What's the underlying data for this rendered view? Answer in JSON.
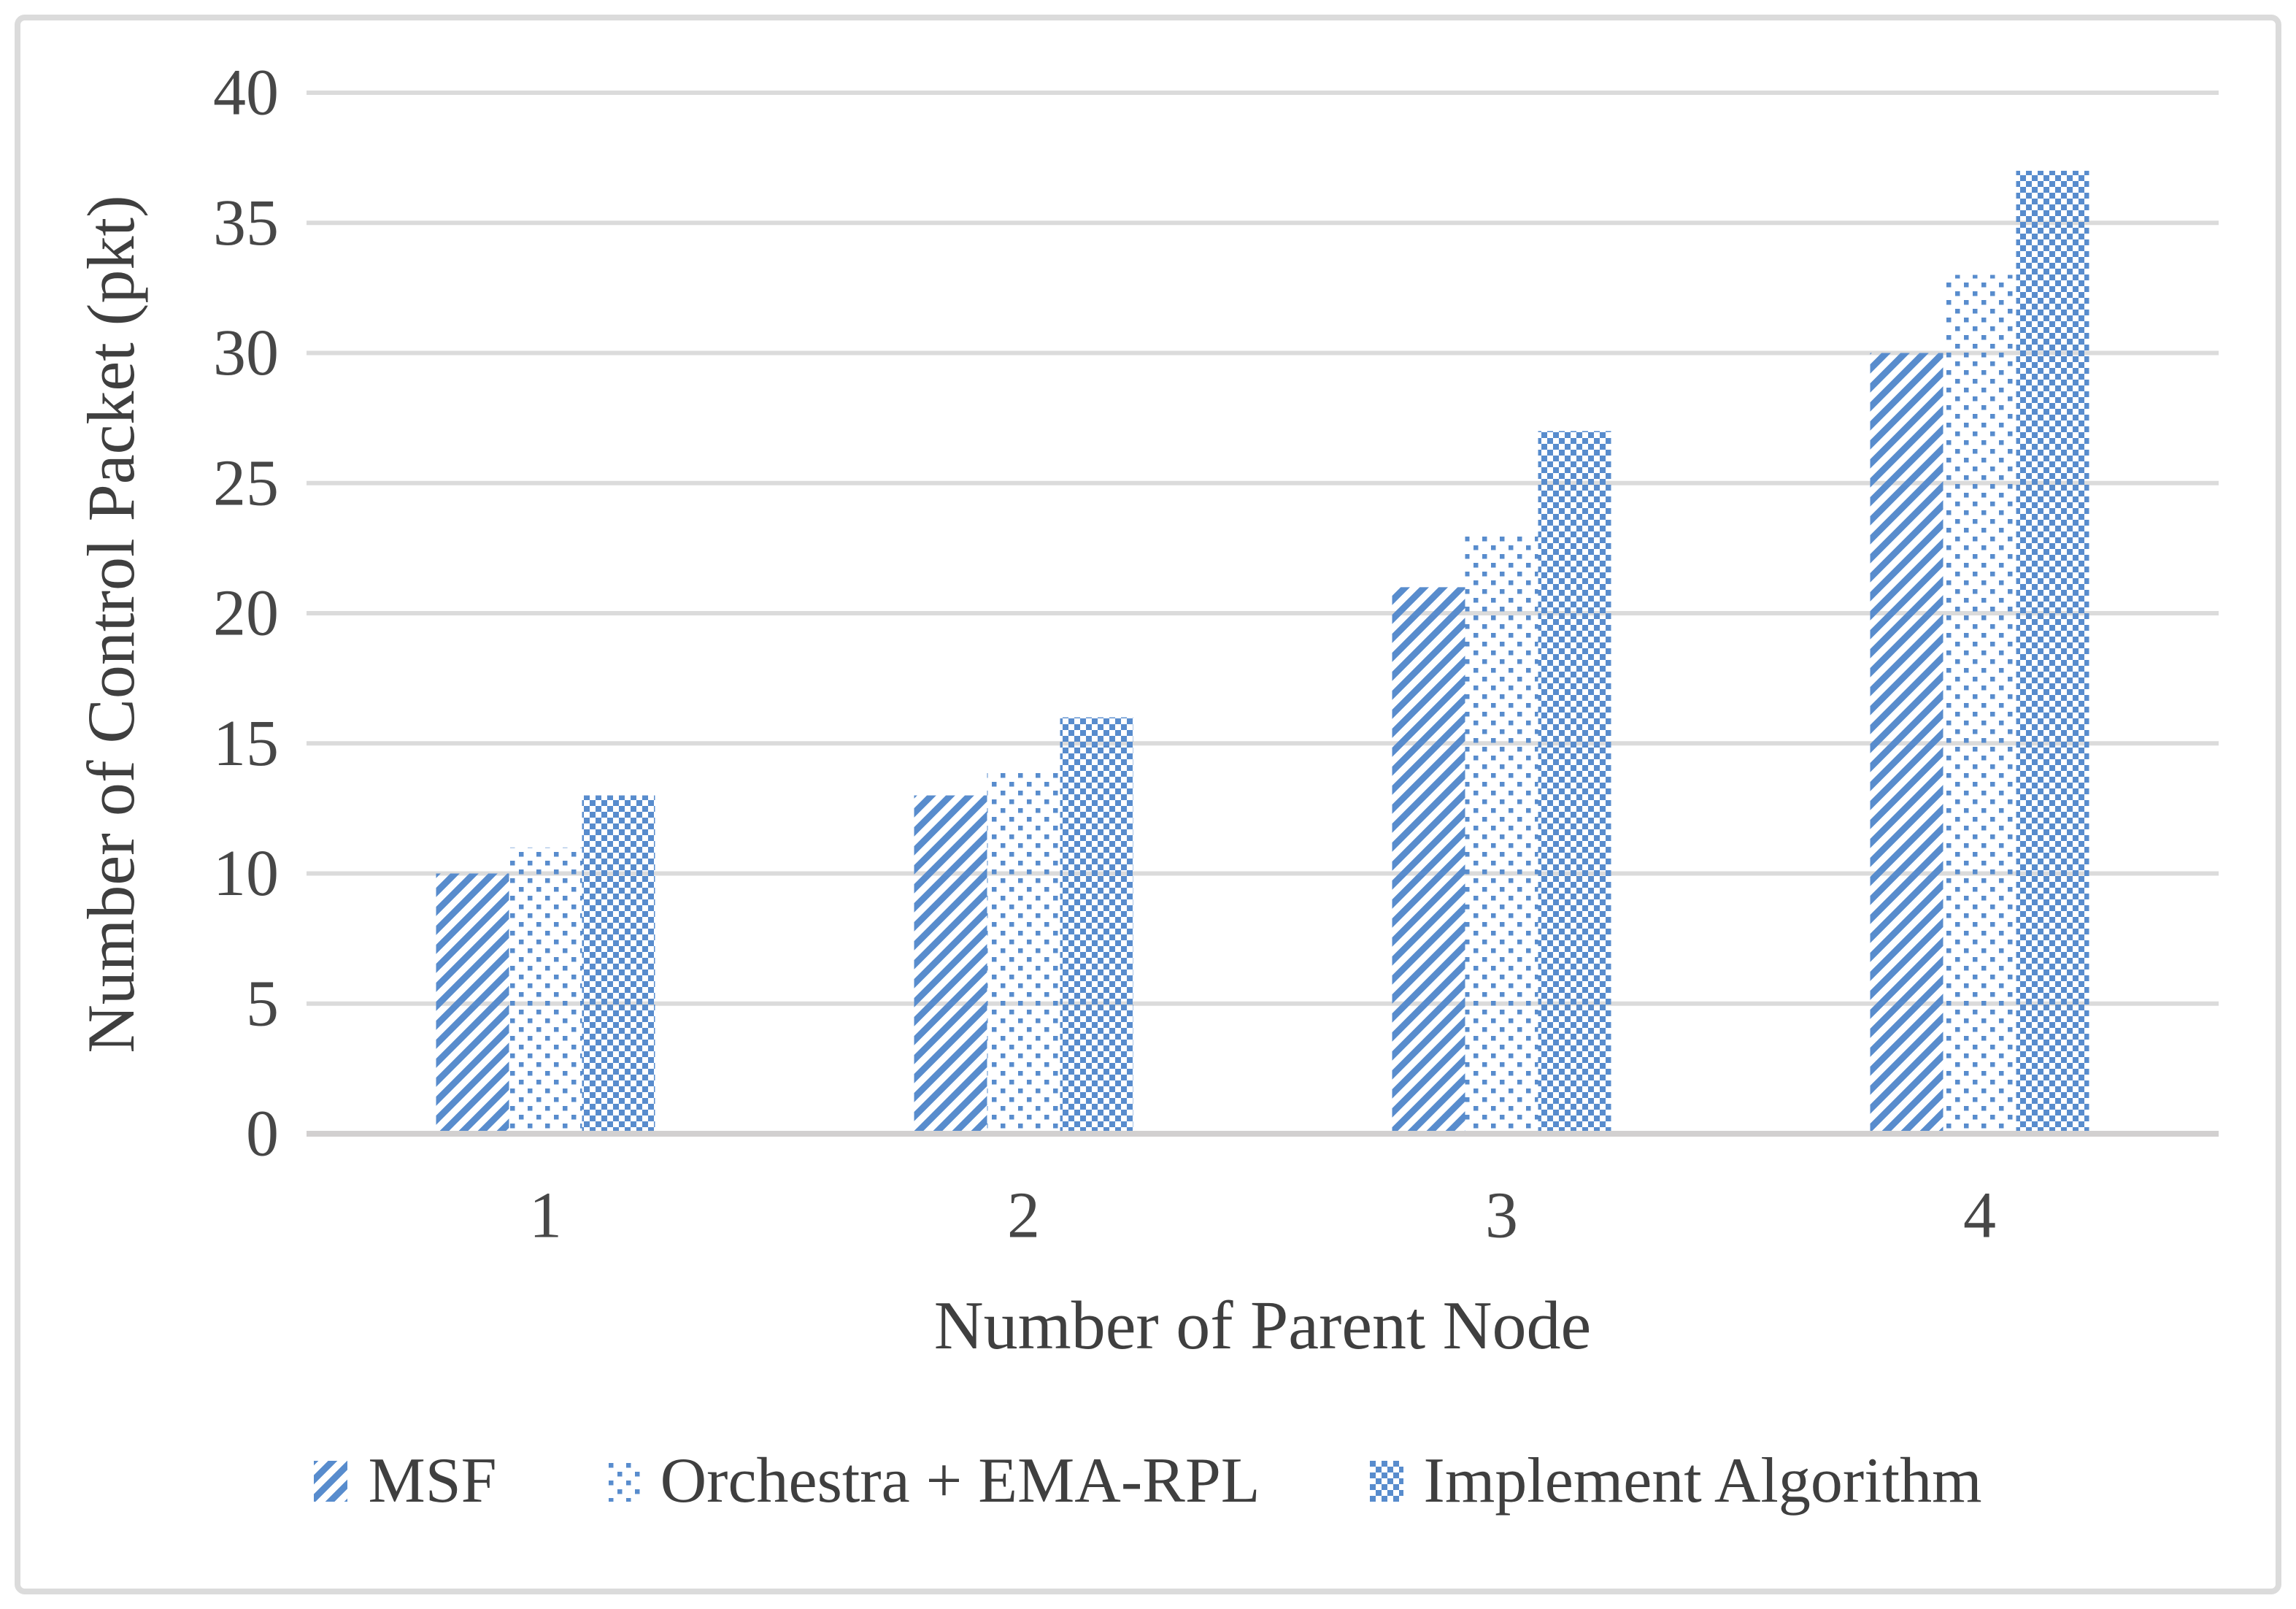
{
  "figure": {
    "background_color": "#FFFFFF",
    "border_color": "#DBDBDB"
  },
  "chart_data": {
    "type": "bar",
    "title": "",
    "categories": [
      "1",
      "2",
      "3",
      "4"
    ],
    "series": [
      {
        "name": "MSF",
        "values": [
          10,
          13,
          21,
          30
        ],
        "pattern": "light-upward-diagonal"
      },
      {
        "name": "Orchestra + EMA-RPL",
        "values": [
          11,
          14,
          23,
          33
        ],
        "pattern": "sparse-dots"
      },
      {
        "name": "Implement Algorithm",
        "values": [
          13,
          16,
          27,
          37
        ],
        "pattern": "small-checker"
      }
    ],
    "xlabel": "Number of Parent Node",
    "ylabel": "Number of Control Packet (pkt)",
    "ylim": [
      0,
      40
    ],
    "yticks": [
      0,
      5,
      10,
      15,
      20,
      25,
      30,
      35,
      40
    ],
    "grid": true,
    "legend_position": "bottom",
    "bar_color": "#588CCD",
    "gridline_color": "#DBDBDB",
    "axis_line_color": "#D2D0D0",
    "text_color": "#474747"
  }
}
